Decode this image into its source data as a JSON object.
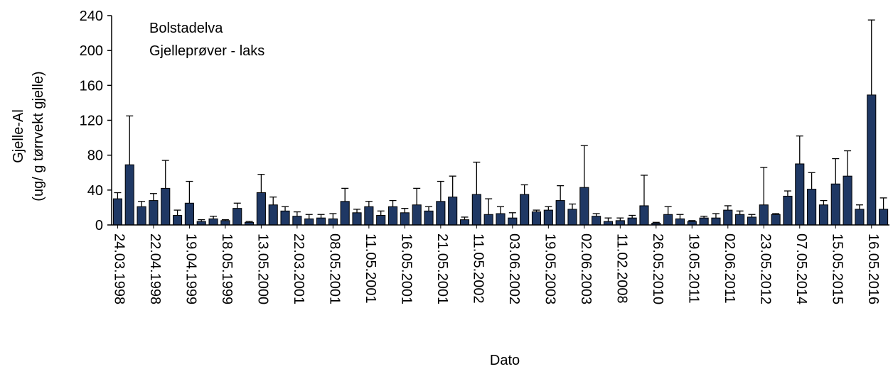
{
  "annotation": {
    "line1": "Bolstadelva",
    "line2": "Gjelleprøver - laks"
  },
  "colors": {
    "bar": "#1f3864",
    "axis": "#000000"
  },
  "chart_data": {
    "type": "bar",
    "title": "",
    "xlabel": "Dato",
    "ylabel_line1": "Gjelle-Al",
    "ylabel_line2": "(ug/ g tørrvekt gjelle)",
    "ylim": [
      0,
      240
    ],
    "yticks": [
      0,
      40,
      80,
      120,
      160,
      200,
      240
    ],
    "grid": false,
    "error_bars": "positive",
    "x_tick_labels": [
      {
        "bar_index": 0,
        "label": "24.03.1998"
      },
      {
        "bar_index": 3,
        "label": "22.04.1998"
      },
      {
        "bar_index": 6,
        "label": "19.04.1999"
      },
      {
        "bar_index": 9,
        "label": "18.05.1999"
      },
      {
        "bar_index": 12,
        "label": "13.05.2000"
      },
      {
        "bar_index": 15,
        "label": "22.03.2001"
      },
      {
        "bar_index": 18,
        "label": "08.05.2001"
      },
      {
        "bar_index": 21,
        "label": "11.05.2001"
      },
      {
        "bar_index": 24,
        "label": "16.05.2001"
      },
      {
        "bar_index": 27,
        "label": "21.05.2001"
      },
      {
        "bar_index": 30,
        "label": "11.05.2002"
      },
      {
        "bar_index": 33,
        "label": "03.06.2002"
      },
      {
        "bar_index": 36,
        "label": "19.05.2003"
      },
      {
        "bar_index": 39,
        "label": "02.06.2003"
      },
      {
        "bar_index": 42,
        "label": "11.02.2008"
      },
      {
        "bar_index": 45,
        "label": "26.05.2010"
      },
      {
        "bar_index": 48,
        "label": "19.05.2011"
      },
      {
        "bar_index": 51,
        "label": "02.06.2011"
      },
      {
        "bar_index": 54,
        "label": "23.05.2012"
      },
      {
        "bar_index": 57,
        "label": "07.05.2014"
      },
      {
        "bar_index": 60,
        "label": "15.05.2015"
      },
      {
        "bar_index": 63,
        "label": "16.05.2016"
      }
    ],
    "values": [
      30,
      69,
      21,
      28,
      42,
      11,
      25,
      4,
      7,
      5,
      19,
      3,
      37,
      23,
      16,
      10,
      7,
      8,
      7,
      27,
      14,
      21,
      11,
      21,
      14,
      23,
      16,
      27,
      32,
      6,
      35,
      12,
      13,
      8,
      35,
      15,
      17,
      28,
      18,
      43,
      10,
      4,
      5,
      8,
      22,
      2,
      12,
      7,
      4,
      8,
      8,
      17,
      12,
      9,
      23,
      12,
      33,
      70,
      41,
      23,
      47,
      56,
      18,
      149,
      18
    ],
    "errors": [
      7,
      56,
      6,
      8,
      32,
      6,
      25,
      2,
      3,
      1,
      6,
      1,
      21,
      9,
      5,
      5,
      5,
      4,
      6,
      15,
      4,
      6,
      5,
      7,
      5,
      19,
      5,
      23,
      24,
      3,
      37,
      18,
      8,
      6,
      11,
      2,
      4,
      17,
      6,
      48,
      3,
      4,
      3,
      3,
      35,
      1,
      9,
      5,
      1,
      2,
      5,
      5,
      4,
      3,
      43,
      1,
      6,
      32,
      19,
      5,
      29,
      29,
      5,
      86,
      13
    ]
  }
}
